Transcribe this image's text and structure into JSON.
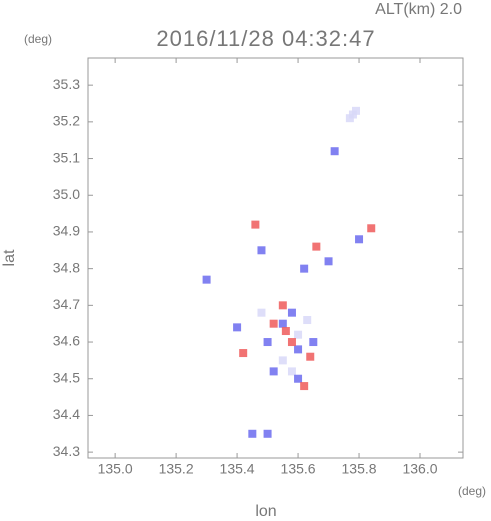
{
  "chart_data": {
    "type": "scatter",
    "title": "2016/11/28 04:32:47",
    "annotation": "ALT(km) 2.0",
    "y_unit": "(deg)",
    "x_unit": "(deg)",
    "x_label": "lon",
    "y_label": "lat",
    "xlim": [
      134.911,
      136.141
    ],
    "ylim": [
      34.284,
      35.374
    ],
    "xticks": [
      {
        "value": 135.0,
        "label": "135.0"
      },
      135.2,
      135.4,
      135.6,
      135.8,
      {
        "value": 136.0,
        "label": "136.0"
      }
    ],
    "yticks": [
      34.3,
      34.4,
      34.5,
      34.6,
      34.7,
      34.8,
      34.9,
      {
        "value": 35.0,
        "label": "35.0"
      },
      35.1,
      35.2,
      35.3
    ],
    "series": [
      {
        "color": "#d8d8f8",
        "x": [
          135.78,
          135.77,
          135.79,
          135.6,
          135.55,
          135.48,
          135.58,
          135.63
        ],
        "values": [
          35.22,
          35.21,
          35.23,
          34.62,
          34.55,
          34.68,
          34.52,
          34.66
        ]
      },
      {
        "color": "#6b6bef",
        "x": [
          135.72,
          135.62,
          135.55,
          135.6,
          135.52,
          135.6,
          135.48,
          135.7,
          135.45,
          135.3,
          135.8,
          135.58,
          135.5,
          135.65,
          135.5,
          135.4
        ],
        "values": [
          35.12,
          34.8,
          34.65,
          34.58,
          34.52,
          34.5,
          34.85,
          34.82,
          34.35,
          34.77,
          34.88,
          34.68,
          34.6,
          34.6,
          34.35,
          34.64
        ]
      },
      {
        "color": "#ef5a5a",
        "x": [
          135.46,
          135.84,
          135.58,
          135.52,
          135.62,
          135.42,
          135.66,
          135.55,
          135.64,
          135.56
        ],
        "values": [
          34.92,
          34.91,
          34.6,
          34.65,
          34.48,
          34.57,
          34.86,
          34.7,
          34.56,
          34.63
        ]
      }
    ]
  }
}
